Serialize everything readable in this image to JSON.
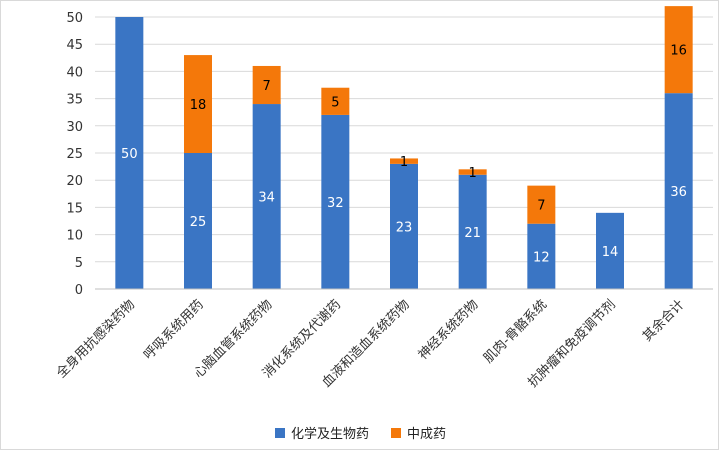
{
  "chart_data": {
    "type": "bar",
    "stacked": true,
    "categories": [
      "全身用抗感染药物",
      "呼吸系统用药",
      "心脑血管系统药物",
      "消化系统及代谢药",
      "血液和造血系统药物",
      "神经系统药物",
      "肌肉-骨骼系统",
      "抗肿瘤和免疫调节剂",
      "其余合计"
    ],
    "series": [
      {
        "name": "化学及生物药",
        "color": "#3a75c4",
        "values": [
          50,
          25,
          34,
          32,
          23,
          21,
          12,
          14,
          36
        ]
      },
      {
        "name": "中成药",
        "color": "#f4780a",
        "values": [
          0,
          18,
          7,
          5,
          1,
          1,
          7,
          0,
          16
        ]
      }
    ],
    "ylim": [
      0,
      50
    ],
    "yticks": [
      0,
      5,
      10,
      15,
      20,
      25,
      30,
      35,
      40,
      45,
      50
    ],
    "grid": true,
    "legend_position": "bottom"
  }
}
